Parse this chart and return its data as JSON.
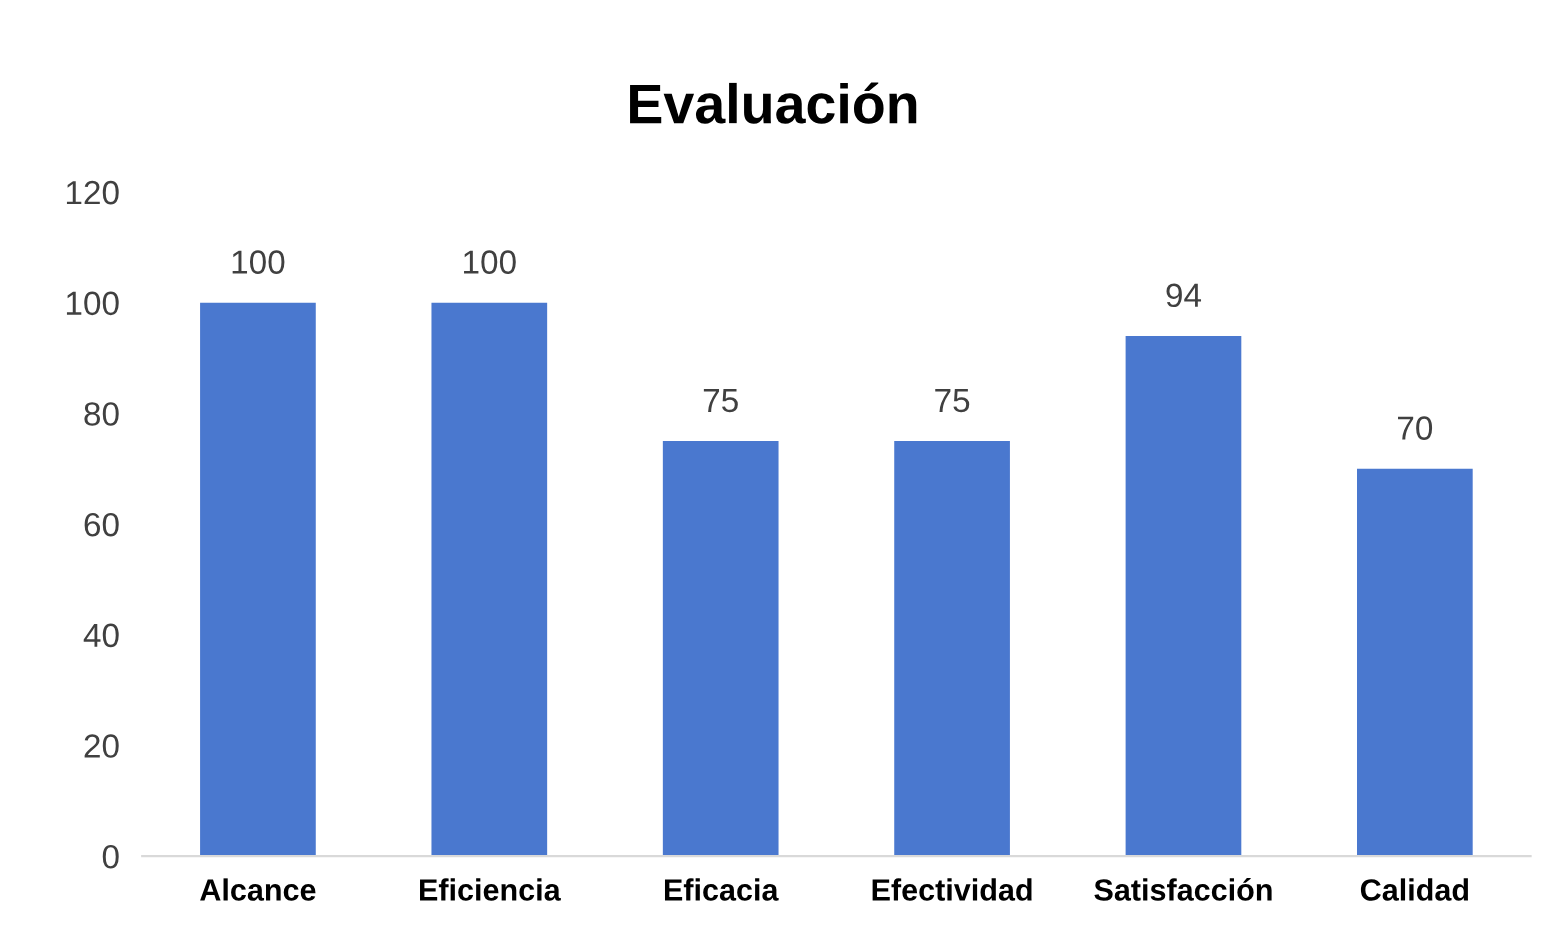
{
  "chart_data": {
    "type": "bar",
    "title": "Evaluación",
    "categories": [
      "Alcance",
      "Eficiencia",
      "Eficacia",
      "Efectividad",
      "Satisfacción",
      "Calidad"
    ],
    "values": [
      100,
      100,
      75,
      75,
      94,
      70
    ],
    "color": "#4a78cf",
    "ylim": [
      0,
      120
    ],
    "yticks": [
      0,
      20,
      40,
      60,
      80,
      100,
      120
    ],
    "grid": false,
    "data_labels": true
  }
}
